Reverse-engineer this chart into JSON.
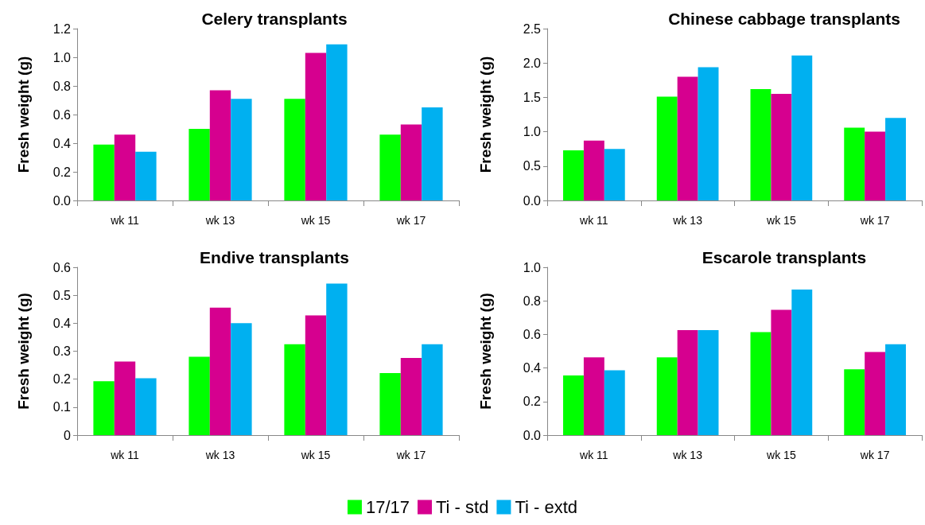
{
  "chart_data": [
    {
      "type": "bar",
      "title": "Celery transplants",
      "ylabel": "Fresh weight (g)",
      "categories": [
        "wk 11",
        "wk 13",
        "wk 15",
        "wk 17"
      ],
      "ylim": [
        0,
        1.2
      ],
      "yticks": [
        {
          "value": 0,
          "label": "0.0"
        },
        0.2,
        0.4,
        0.6,
        0.8,
        {
          "value": 1,
          "label": "1.0"
        },
        1.2
      ],
      "grid": false,
      "legend": "bottom",
      "series": [
        {
          "name": "17/17",
          "color": "#00ff00",
          "values": [
            0.39,
            0.5,
            0.71,
            0.46
          ]
        },
        {
          "name": "Ti - std",
          "color": "#d6008f",
          "values": [
            0.46,
            0.77,
            1.03,
            0.53
          ]
        },
        {
          "name": "Ti - extd",
          "color": "#00b0f0",
          "values": [
            0.34,
            0.71,
            1.09,
            0.65
          ]
        }
      ]
    },
    {
      "type": "bar",
      "title": "Chinese cabbage transplants",
      "ylabel": "Fresh weight (g)",
      "categories": [
        "wk 11",
        "wk 13",
        "wk 15",
        "wk 17"
      ],
      "ylim": [
        0,
        2.5
      ],
      "yticks": [
        {
          "value": 0,
          "label": "0.0"
        },
        0.5,
        {
          "value": 1,
          "label": "1.0"
        },
        1.5,
        {
          "value": 2,
          "label": "2.0"
        },
        2.5
      ],
      "grid": false,
      "series": [
        {
          "color": "#00ff00",
          "values": [
            0.73,
            1.51,
            1.62,
            1.06
          ]
        },
        {
          "color": "#d6008f",
          "values": [
            0.87,
            1.8,
            1.55,
            1.0
          ]
        },
        {
          "color": "#00b0f0",
          "values": [
            0.75,
            1.94,
            2.11,
            1.2
          ]
        }
      ]
    },
    {
      "type": "bar",
      "title": "Endive transplants",
      "ylabel": "Fresh weight (g)",
      "categories": [
        "wk 11",
        "wk 13",
        "wk 15",
        "wk 17"
      ],
      "ylim": [
        0,
        0.6
      ],
      "yticks": [
        0,
        0.1,
        0.2,
        0.3,
        0.4,
        0.5,
        0.6
      ],
      "grid": false,
      "series": [
        {
          "color": "#00ff00",
          "values": [
            0.193,
            0.28,
            0.325,
            0.222
          ]
        },
        {
          "color": "#d6008f",
          "values": [
            0.263,
            0.456,
            0.428,
            0.276
          ]
        },
        {
          "color": "#00b0f0",
          "values": [
            0.203,
            0.4,
            0.542,
            0.325
          ]
        }
      ]
    },
    {
      "type": "bar",
      "title": "Escarole transplants",
      "ylabel": "Fresh weight (g)",
      "categories": [
        "wk 11",
        "wk 13",
        "wk 15",
        "wk 17"
      ],
      "ylim": [
        0,
        1.0
      ],
      "yticks": [
        {
          "value": 0,
          "label": "0.0"
        },
        0.2,
        0.4,
        0.6,
        0.8,
        {
          "value": 1,
          "label": "1.0"
        }
      ],
      "grid": false,
      "series": [
        {
          "color": "#00ff00",
          "values": [
            0.355,
            0.463,
            0.614,
            0.392
          ]
        },
        {
          "color": "#d6008f",
          "values": [
            0.463,
            0.626,
            0.747,
            0.495
          ]
        },
        {
          "color": "#00b0f0",
          "values": [
            0.386,
            0.626,
            0.867,
            0.542
          ]
        }
      ]
    }
  ]
}
